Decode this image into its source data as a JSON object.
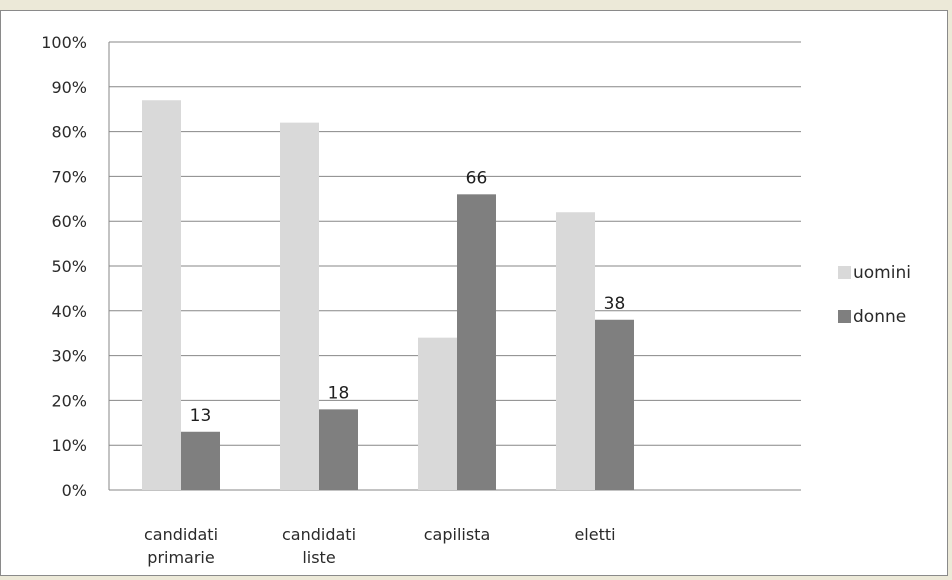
{
  "chart_data": {
    "type": "bar",
    "categories": [
      [
        "candidati",
        "primarie"
      ],
      [
        "candidati",
        "liste"
      ],
      [
        "capilista"
      ],
      [
        "eletti"
      ]
    ],
    "series": [
      {
        "name": "uomini",
        "values": [
          87,
          82,
          34,
          62
        ],
        "color": "#d9d9d9",
        "labels": [
          null,
          null,
          null,
          null
        ]
      },
      {
        "name": "donne",
        "values": [
          13,
          18,
          66,
          38
        ],
        "color": "#7f7f7f",
        "labels": [
          "13",
          "18",
          "66",
          "38"
        ]
      }
    ],
    "yticks": [
      "0%",
      "10%",
      "20%",
      "30%",
      "40%",
      "50%",
      "60%",
      "70%",
      "80%",
      "90%",
      "100%"
    ],
    "ylim": [
      0,
      100
    ],
    "grid": true,
    "legend": "right"
  }
}
